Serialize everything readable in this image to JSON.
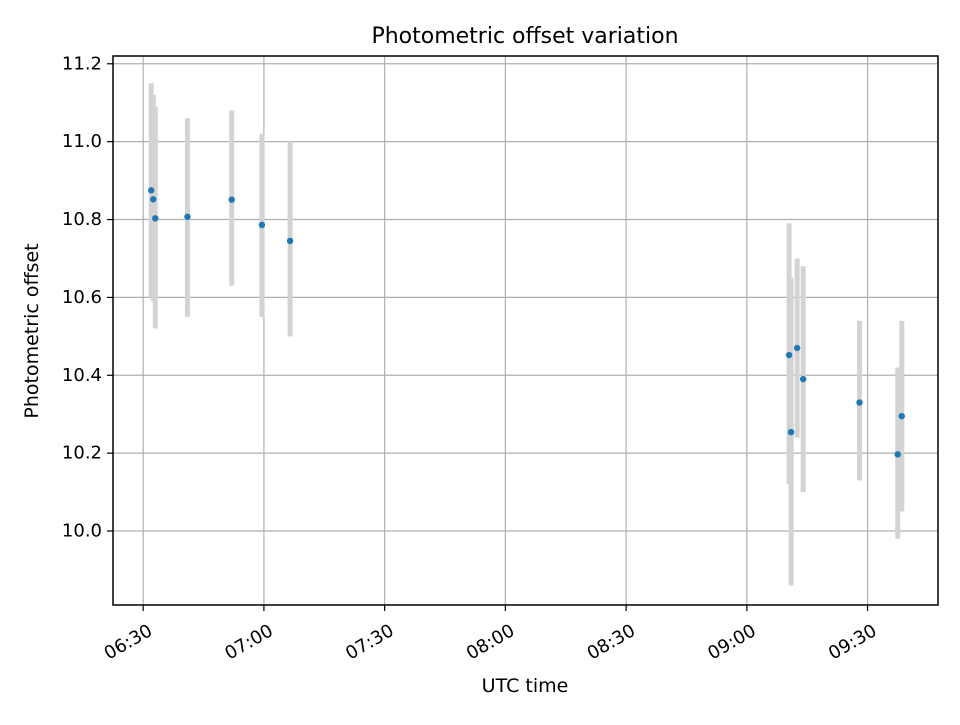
{
  "chart_data": {
    "type": "scatter",
    "title": "Photometric offset variation",
    "xlabel": "UTC time",
    "ylabel": "Photometric offset",
    "x_axis_type": "time",
    "xlim": [
      "06:22:30",
      "09:47:30"
    ],
    "ylim": [
      9.81,
      11.22
    ],
    "x_ticks": [
      "06:30",
      "07:00",
      "07:30",
      "08:00",
      "08:30",
      "09:00",
      "09:30"
    ],
    "y_ticks": [
      "10.0",
      "10.2",
      "10.4",
      "10.6",
      "10.8",
      "11.0",
      "11.2"
    ],
    "grid": true,
    "marker_color": "#1f77b4",
    "errorbar_color": "#d3d3d3",
    "points": [
      {
        "x": "06:32:00",
        "y": 10.875,
        "yerr_low": 10.6,
        "yerr_high": 11.15
      },
      {
        "x": "06:32:30",
        "y": 10.852,
        "yerr_low": 10.59,
        "yerr_high": 11.12
      },
      {
        "x": "06:33:00",
        "y": 10.803,
        "yerr_low": 10.52,
        "yerr_high": 11.09
      },
      {
        "x": "06:41:00",
        "y": 10.807,
        "yerr_low": 10.55,
        "yerr_high": 11.06
      },
      {
        "x": "06:52:00",
        "y": 10.851,
        "yerr_low": 10.63,
        "yerr_high": 11.08
      },
      {
        "x": "06:59:30",
        "y": 10.786,
        "yerr_low": 10.55,
        "yerr_high": 11.02
      },
      {
        "x": "07:06:30",
        "y": 10.745,
        "yerr_low": 10.5,
        "yerr_high": 11.0
      },
      {
        "x": "09:10:30",
        "y": 10.452,
        "yerr_low": 10.12,
        "yerr_high": 10.79
      },
      {
        "x": "09:11:00",
        "y": 10.254,
        "yerr_low": 9.86,
        "yerr_high": 10.65
      },
      {
        "x": "09:12:30",
        "y": 10.47,
        "yerr_low": 10.24,
        "yerr_high": 10.7
      },
      {
        "x": "09:14:00",
        "y": 10.39,
        "yerr_low": 10.1,
        "yerr_high": 10.68
      },
      {
        "x": "09:28:00",
        "y": 10.33,
        "yerr_low": 10.13,
        "yerr_high": 10.54
      },
      {
        "x": "09:37:30",
        "y": 10.197,
        "yerr_low": 9.98,
        "yerr_high": 10.42
      },
      {
        "x": "09:38:30",
        "y": 10.295,
        "yerr_low": 10.05,
        "yerr_high": 10.54
      }
    ]
  }
}
